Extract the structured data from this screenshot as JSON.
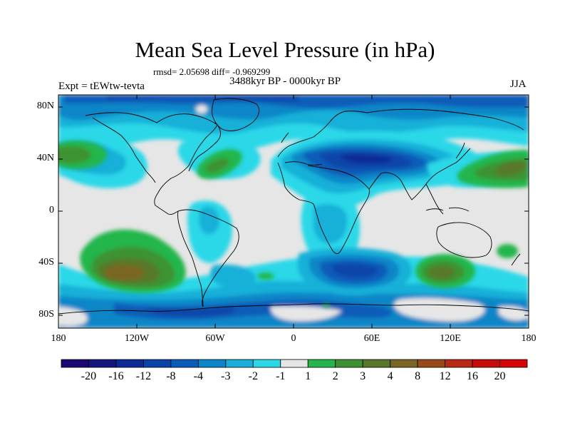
{
  "title": "Mean Sea Level Pressure (in hPa)",
  "stats": "rmsd= 2.05698 diff= -0.969299",
  "period": "3488kyr BP - 0000kyr BP",
  "expt": "Expt = tEWtw-tevta",
  "season": "JJA",
  "lat_ticks": [
    "80N",
    "40N",
    "0",
    "40S",
    "80S"
  ],
  "lon_ticks": [
    "180",
    "120W",
    "60W",
    "0",
    "60E",
    "120E",
    "180"
  ],
  "colorbar": {
    "labels": [
      "-20",
      "-16",
      "-12",
      "-8",
      "-4",
      "-3",
      "-2",
      "-1",
      "1",
      "2",
      "3",
      "4",
      "8",
      "12",
      "16",
      "20"
    ],
    "colors": [
      "#1b0870",
      "#15157e",
      "#0c2a96",
      "#0a44a8",
      "#0a5cb8",
      "#0a86c8",
      "#18b0d8",
      "#2ad8e8",
      "#e6e6e6",
      "#24b64c",
      "#3c9232",
      "#58782a",
      "#7a6622",
      "#9a4a18",
      "#b82a14",
      "#c80c0c",
      "#d60606"
    ]
  }
}
